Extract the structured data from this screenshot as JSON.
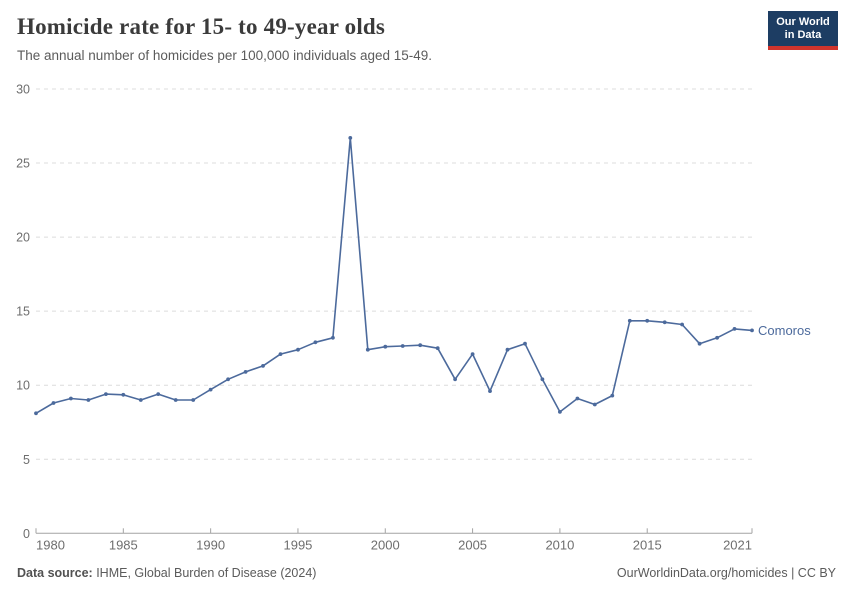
{
  "header": {
    "title": "Homicide rate for 15- to 49-year olds",
    "subtitle": "The annual number of homicides per 100,000 individuals aged 15-49.",
    "logo": {
      "line1": "Our World",
      "line2": "in Data",
      "bg": "#1d3d63",
      "accent": "#d0342c"
    }
  },
  "chart_data": {
    "type": "line",
    "title": "Homicide rate for 15- to 49-year olds",
    "xlabel": "",
    "ylabel": "",
    "xlim": [
      1980,
      2021
    ],
    "ylim": [
      0,
      30
    ],
    "grid": "horizontal-dashed",
    "legend_position": "end-of-line-label",
    "x_ticks": [
      1980,
      1985,
      1990,
      1995,
      2000,
      2005,
      2010,
      2015,
      2021
    ],
    "y_ticks": [
      0,
      5,
      10,
      15,
      20,
      25,
      30
    ],
    "series": [
      {
        "name": "Comoros",
        "color": "#4c6a9c",
        "x": [
          1980,
          1981,
          1982,
          1983,
          1984,
          1985,
          1986,
          1987,
          1988,
          1989,
          1990,
          1991,
          1992,
          1993,
          1994,
          1995,
          1996,
          1997,
          1998,
          1999,
          2000,
          2001,
          2002,
          2003,
          2004,
          2005,
          2006,
          2007,
          2008,
          2009,
          2010,
          2011,
          2012,
          2013,
          2014,
          2015,
          2016,
          2017,
          2018,
          2019,
          2020,
          2021
        ],
        "values": [
          8.1,
          8.8,
          9.1,
          9.0,
          9.4,
          9.35,
          9.0,
          9.4,
          9.0,
          9.0,
          9.7,
          10.4,
          10.9,
          11.3,
          12.1,
          12.4,
          12.9,
          13.2,
          26.7,
          12.4,
          12.6,
          12.65,
          12.7,
          12.5,
          10.4,
          12.1,
          9.6,
          12.4,
          12.8,
          10.4,
          8.2,
          9.1,
          8.7,
          9.3,
          14.35,
          14.35,
          14.25,
          14.1,
          12.8,
          13.2,
          13.8,
          13.7
        ]
      }
    ],
    "colors": {
      "grid": "#dcdcdc",
      "axis": "#a3a3a3",
      "tick_label": "#6e6e6e",
      "line": "#4c6a9c"
    }
  },
  "footer": {
    "source_label": "Data source:",
    "source_value": " IHME, Global Burden of Disease (2024)",
    "credit": "OurWorldinData.org/homicides | CC BY"
  }
}
